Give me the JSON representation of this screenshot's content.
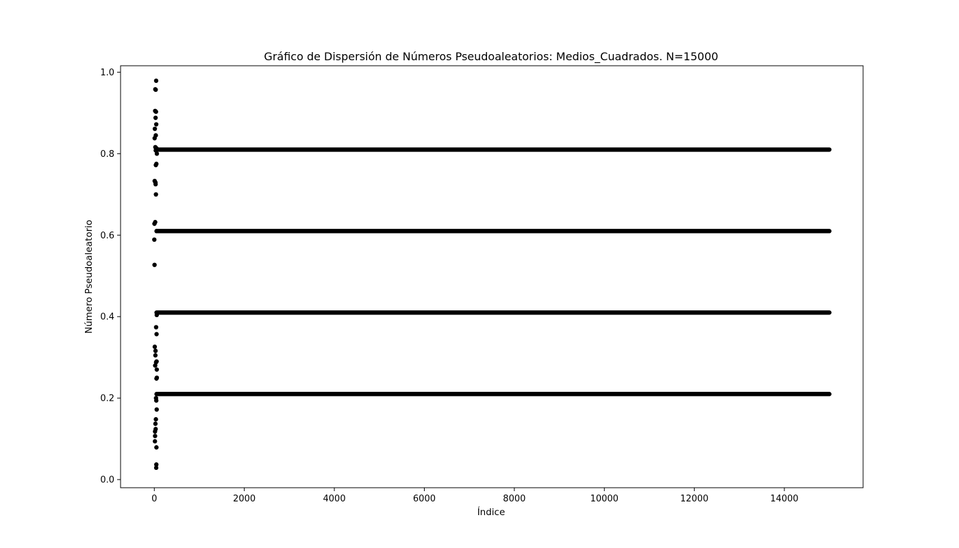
{
  "chart_data": {
    "type": "scatter",
    "title": "Gráfico de Dispersión de Números Pseudoaleatorios: Medios_Cuadrados. N=15000",
    "xlabel": "Índice",
    "ylabel": "Número Pseudoaleatorio",
    "xlim": [
      -750,
      15750
    ],
    "ylim": [
      -0.02,
      1.0158
    ],
    "x_ticks": [
      0,
      2000,
      4000,
      6000,
      8000,
      10000,
      12000,
      14000
    ],
    "y_ticks": [
      0.0,
      0.2,
      0.4,
      0.6,
      0.8,
      1.0
    ],
    "x_tick_labels": [
      "0",
      "2000",
      "4000",
      "6000",
      "8000",
      "10000",
      "12000",
      "14000"
    ],
    "y_tick_labels": [
      "0.0",
      "0.2",
      "0.4",
      "0.6",
      "0.8",
      "1.0"
    ],
    "grid": false,
    "marker_color": "#000000",
    "series": [
      {
        "initial_points": [
          [
            0,
            0.589
          ],
          [
            3,
            0.628
          ],
          [
            5,
            0.527
          ],
          [
            7,
            0.838
          ],
          [
            8,
            0.733
          ],
          [
            10,
            0.326
          ],
          [
            12,
            0.861
          ],
          [
            14,
            0.094
          ],
          [
            16,
            0.118
          ],
          [
            17,
            0.107
          ],
          [
            18,
            0.905
          ],
          [
            19,
            0.28
          ],
          [
            20,
            0.632
          ],
          [
            22,
            0.958
          ],
          [
            23,
            0.816
          ],
          [
            24,
            0.305
          ],
          [
            25,
            0.137
          ],
          [
            26,
            0.729
          ],
          [
            27,
            0.316
          ],
          [
            28,
            0.888
          ],
          [
            29,
            0.725
          ],
          [
            30,
            0.124
          ],
          [
            31,
            0.957
          ],
          [
            32,
            0.808
          ],
          [
            33,
            0.845
          ],
          [
            34,
            0.772
          ],
          [
            35,
            0.148
          ],
          [
            36,
            0.7
          ],
          [
            37,
            0.903
          ],
          [
            38,
            0.2
          ],
          [
            39,
            0.288
          ],
          [
            40,
            0.374
          ],
          [
            41,
            0.979
          ],
          [
            42,
            0.029
          ],
          [
            43,
            0.872
          ],
          [
            44,
            0.194
          ],
          [
            45,
            0.037
          ],
          [
            46,
            0.775
          ],
          [
            47,
            0.079
          ],
          [
            48,
            0.248
          ],
          [
            49,
            0.813
          ],
          [
            50,
            0.357
          ],
          [
            51,
            0.29
          ],
          [
            52,
            0.61
          ],
          [
            53,
            0.172
          ],
          [
            54,
            0.404
          ],
          [
            55,
            0.27
          ],
          [
            56,
            0.25
          ],
          [
            57,
            0.8
          ]
        ],
        "cycle_values": [
          0.21,
          0.41,
          0.61,
          0.81
        ],
        "cycle_x_range": [
          50,
          14999
        ]
      }
    ]
  }
}
